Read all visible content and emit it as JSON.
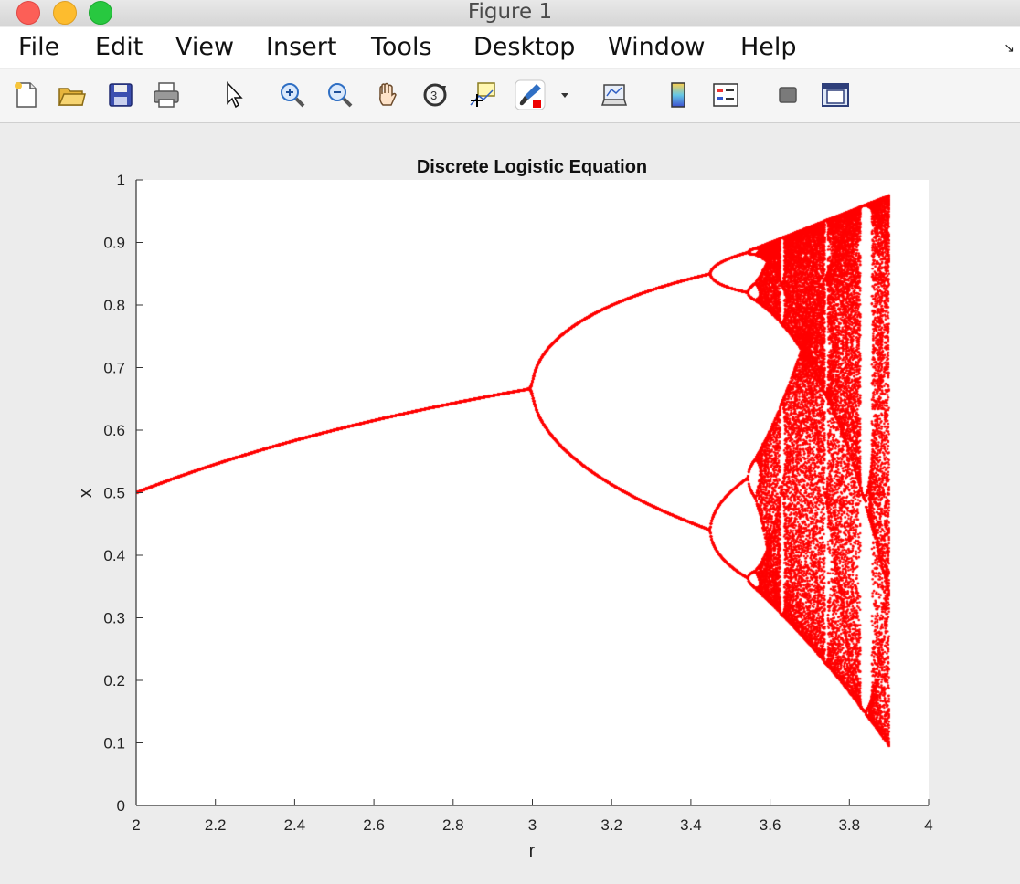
{
  "window": {
    "title": "Figure 1"
  },
  "menu": {
    "items": [
      "File",
      "Edit",
      "View",
      "Insert",
      "Tools",
      "Desktop",
      "Window",
      "Help"
    ]
  },
  "toolbar": {
    "icons": [
      "new-figure-icon",
      "open-file-icon",
      "save-icon",
      "print-icon",
      "pointer-icon",
      "zoom-in-icon",
      "zoom-out-icon",
      "pan-icon",
      "rotate-3d-icon",
      "data-cursor-icon",
      "brush-icon",
      "link-plot-icon",
      "colorbar-icon",
      "legend-icon",
      "hide-plot-tools-icon",
      "show-plot-tools-icon"
    ]
  },
  "chart_data": {
    "type": "scatter",
    "title": "Discrete Logistic Equation",
    "xlabel": "r",
    "ylabel": "x",
    "xlim": [
      2,
      4
    ],
    "ylim": [
      0,
      1
    ],
    "xticks": [
      "2",
      "2.2",
      "2.4",
      "2.6",
      "2.8",
      "3",
      "3.2",
      "3.4",
      "3.6",
      "3.8",
      "4"
    ],
    "yticks": [
      "0",
      "0.1",
      "0.2",
      "0.3",
      "0.4",
      "0.5",
      "0.6",
      "0.7",
      "0.8",
      "0.9",
      "1"
    ],
    "r_range": [
      2,
      3.9
    ],
    "color": "#ff0000",
    "grid": false
  }
}
